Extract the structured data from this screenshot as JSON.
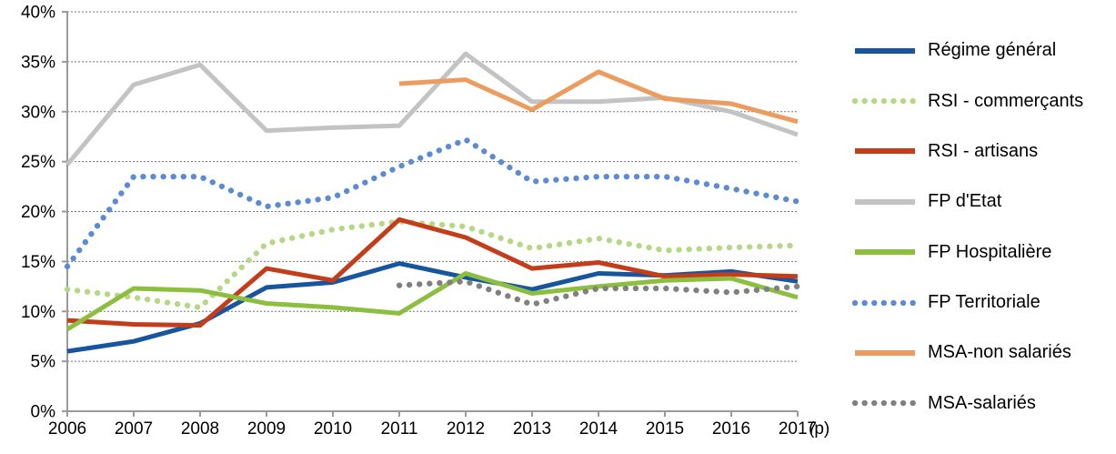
{
  "chart_data": {
    "type": "line",
    "title": "",
    "x_tick_labels": [
      "2006",
      "2007",
      "2008",
      "2009",
      "2010",
      "2011",
      "2012",
      "2013",
      "2014",
      "2015",
      "2016",
      "2017"
    ],
    "x_axis_suffix": "(p)",
    "y_tick_labels": [
      "0%",
      "5%",
      "10%",
      "15%",
      "20%",
      "25%",
      "30%",
      "35%",
      "40%"
    ],
    "ylim": [
      0,
      40
    ],
    "y_step": 5,
    "y_unit": "%",
    "grid": "horizontal-dashed",
    "legend_position": "right",
    "colors": {
      "axis": "#9a9a9a",
      "grid": "#757575",
      "tick_text": "#000000"
    },
    "series": [
      {
        "name": "Régime général",
        "style": "solid",
        "color": "#17559F",
        "values": [
          6.0,
          7.0,
          8.8,
          12.4,
          12.9,
          14.8,
          13.4,
          12.2,
          13.8,
          13.6,
          14.0,
          13.0
        ]
      },
      {
        "name": "RSI - commerçants",
        "style": "dotted",
        "color": "#B5D884",
        "values": [
          12.2,
          11.4,
          10.4,
          16.8,
          18.2,
          19.0,
          18.5,
          16.3,
          17.3,
          16.1,
          16.4,
          16.6
        ]
      },
      {
        "name": "RSI - artisans",
        "style": "solid",
        "color": "#C33D1B",
        "values": [
          9.1,
          8.7,
          8.6,
          14.3,
          13.1,
          19.2,
          17.4,
          14.3,
          14.9,
          13.5,
          13.7,
          13.5
        ]
      },
      {
        "name": "FP d'Etat",
        "style": "solid",
        "color": "#C3C3C3",
        "values": [
          24.7,
          32.7,
          34.7,
          28.1,
          28.4,
          28.6,
          35.8,
          31.0,
          31.0,
          31.4,
          30.0,
          27.7
        ]
      },
      {
        "name": "FP Hospitalière",
        "style": "solid",
        "color": "#8CBE3F",
        "values": [
          8.2,
          12.3,
          12.1,
          10.8,
          10.4,
          9.8,
          13.8,
          11.8,
          12.5,
          13.1,
          13.3,
          11.4
        ]
      },
      {
        "name": "FP Territoriale",
        "style": "dotted",
        "color": "#5B8BD0",
        "values": [
          14.5,
          23.5,
          23.5,
          20.5,
          21.4,
          24.5,
          27.2,
          23.0,
          23.5,
          23.5,
          22.3,
          21.0
        ]
      },
      {
        "name": "MSA-non salariés",
        "style": "solid",
        "color": "#EB9C5E",
        "values": [
          null,
          null,
          null,
          null,
          null,
          32.8,
          33.2,
          30.2,
          34.0,
          31.3,
          30.8,
          29.0
        ]
      },
      {
        "name": "MSA-salariés",
        "style": "dotted",
        "color": "#808080",
        "values": [
          null,
          null,
          null,
          null,
          null,
          12.6,
          13.0,
          10.7,
          12.3,
          12.3,
          11.9,
          12.5
        ]
      }
    ]
  }
}
